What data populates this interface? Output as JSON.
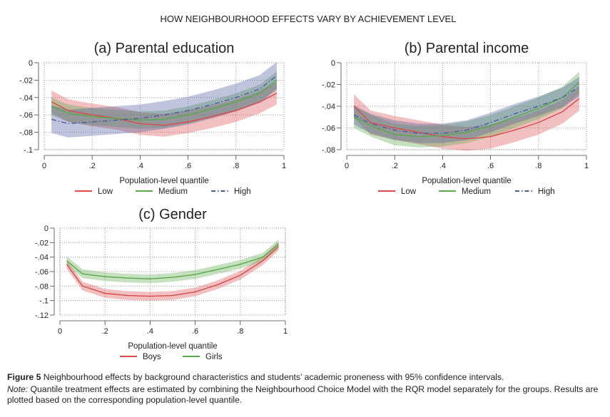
{
  "figure_title": "HOW NEIGHBOURHOOD EFFECTS VARY BY ACHIEVEMENT LEVEL",
  "caption": {
    "label": "Figure 5",
    "text": " Neighbourhood effects by background characteristics and students’ academic proneness with 95% confidence intervals.",
    "note_label": "Note:",
    "note_text": " Quantile treatment effects are estimated by combining the Neighbourhood Choice Model with the RQR model separately for the groups. Results are plotted based on the corresponding population-level quantile."
  },
  "colors": {
    "low": "#d94a4a",
    "medium": "#5aa84a",
    "high": "#4a5a9e",
    "boys": "#d94a4a",
    "girls": "#5aa84a"
  },
  "chart_data": [
    {
      "type": "line",
      "title": "(a) Parental education",
      "xlabel": "Population-level quantile",
      "ylabel": "",
      "xlim": [
        0,
        1
      ],
      "ylim": [
        -0.1,
        0
      ],
      "xticks": [
        "0",
        ".2",
        ".4",
        ".6",
        ".8",
        "1"
      ],
      "yticks": [
        "0",
        "-.02",
        "-.04",
        "-.06",
        "-.08",
        "-.1"
      ],
      "x": [
        0.03,
        0.1,
        0.2,
        0.3,
        0.4,
        0.5,
        0.6,
        0.7,
        0.8,
        0.9,
        0.97
      ],
      "series": [
        {
          "name": "Low",
          "color_key": "low",
          "dash": "solid",
          "values": [
            -0.045,
            -0.055,
            -0.06,
            -0.064,
            -0.07,
            -0.072,
            -0.068,
            -0.062,
            -0.055,
            -0.045,
            -0.035
          ],
          "ci": 0.013
        },
        {
          "name": "Medium",
          "color_key": "medium",
          "dash": "solid",
          "values": [
            -0.05,
            -0.058,
            -0.062,
            -0.064,
            -0.066,
            -0.065,
            -0.06,
            -0.053,
            -0.045,
            -0.035,
            -0.02
          ],
          "ci": 0.01
        },
        {
          "name": "High",
          "color_key": "high",
          "dash": "dashdot",
          "values": [
            -0.065,
            -0.07,
            -0.068,
            -0.066,
            -0.064,
            -0.06,
            -0.055,
            -0.048,
            -0.04,
            -0.03,
            -0.015
          ],
          "ci": 0.016
        }
      ],
      "legend_position": "bottom"
    },
    {
      "type": "line",
      "title": "(b) Parental income",
      "xlabel": "Population-level quantile",
      "ylabel": "",
      "xlim": [
        0,
        1
      ],
      "ylim": [
        -0.08,
        0
      ],
      "xticks": [
        "0",
        ".2",
        ".4",
        ".6",
        ".8",
        "1"
      ],
      "yticks": [
        "0",
        "-.02",
        "-.04",
        "-.06",
        "-.08"
      ],
      "x": [
        0.03,
        0.1,
        0.2,
        0.3,
        0.4,
        0.5,
        0.6,
        0.7,
        0.8,
        0.9,
        0.97
      ],
      "series": [
        {
          "name": "Low",
          "color_key": "low",
          "dash": "solid",
          "values": [
            -0.04,
            -0.055,
            -0.06,
            -0.064,
            -0.068,
            -0.07,
            -0.068,
            -0.062,
            -0.055,
            -0.045,
            -0.033
          ],
          "ci": 0.011
        },
        {
          "name": "Medium",
          "color_key": "medium",
          "dash": "solid",
          "values": [
            -0.05,
            -0.058,
            -0.066,
            -0.068,
            -0.067,
            -0.064,
            -0.058,
            -0.05,
            -0.042,
            -0.032,
            -0.018
          ],
          "ci": 0.01
        },
        {
          "name": "High",
          "color_key": "high",
          "dash": "dashdot",
          "values": [
            -0.048,
            -0.056,
            -0.062,
            -0.065,
            -0.065,
            -0.062,
            -0.055,
            -0.047,
            -0.04,
            -0.032,
            -0.022
          ],
          "ci": 0.009
        }
      ],
      "legend_position": "bottom"
    },
    {
      "type": "line",
      "title": "(c) Gender",
      "xlabel": "Population-level quantile",
      "ylabel": "",
      "xlim": [
        0,
        1
      ],
      "ylim": [
        -0.12,
        0
      ],
      "xticks": [
        "0",
        ".2",
        ".4",
        ".6",
        ".8",
        "1"
      ],
      "yticks": [
        "0",
        "-.02",
        "-.04",
        "-.06",
        "-.08",
        "-.1",
        "-.12"
      ],
      "x": [
        0.03,
        0.1,
        0.2,
        0.3,
        0.4,
        0.5,
        0.6,
        0.7,
        0.8,
        0.9,
        0.97
      ],
      "series": [
        {
          "name": "Boys",
          "color_key": "boys",
          "dash": "solid",
          "values": [
            -0.05,
            -0.08,
            -0.09,
            -0.093,
            -0.094,
            -0.093,
            -0.088,
            -0.078,
            -0.065,
            -0.045,
            -0.025
          ],
          "ci": 0.006
        },
        {
          "name": "Girls",
          "color_key": "girls",
          "dash": "solid",
          "values": [
            -0.045,
            -0.063,
            -0.067,
            -0.069,
            -0.07,
            -0.068,
            -0.064,
            -0.057,
            -0.05,
            -0.04,
            -0.022
          ],
          "ci": 0.006
        }
      ],
      "legend_position": "bottom"
    }
  ]
}
